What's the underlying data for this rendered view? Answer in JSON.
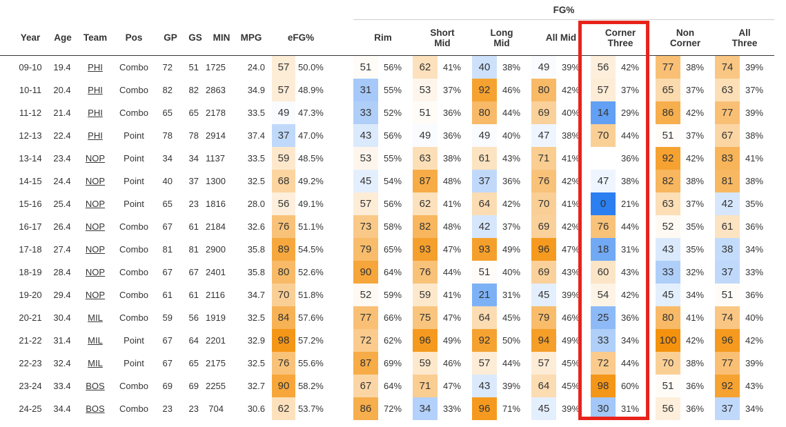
{
  "table": {
    "group_header": "FG%",
    "columns": [
      "Year",
      "Age",
      "Team",
      "Pos",
      "GP",
      "GS",
      "MIN",
      "MPG",
      "eFG%",
      "Rim",
      "Short Mid",
      "Long Mid",
      "All Mid",
      "Corner Three",
      "Non Corner",
      "All Three"
    ],
    "rows": [
      [
        "09-10",
        "19.4",
        "PHI",
        "Combo",
        "72",
        "51",
        "1725",
        "24.0",
        57,
        "50.0%",
        51,
        "56%",
        62,
        "41%",
        40,
        "38%",
        49,
        "39%",
        56,
        "42%",
        77,
        "38%",
        74,
        "39%"
      ],
      [
        "10-11",
        "20.4",
        "PHI",
        "Combo",
        "82",
        "82",
        "2863",
        "34.9",
        57,
        "48.9%",
        31,
        "55%",
        53,
        "37%",
        92,
        "46%",
        80,
        "42%",
        57,
        "37%",
        65,
        "37%",
        63,
        "37%"
      ],
      [
        "11-12",
        "21.4",
        "PHI",
        "Combo",
        "65",
        "65",
        "2178",
        "33.5",
        49,
        "47.3%",
        33,
        "52%",
        51,
        "36%",
        80,
        "44%",
        69,
        "40%",
        14,
        "29%",
        86,
        "42%",
        77,
        "39%"
      ],
      [
        "12-13",
        "22.4",
        "PHI",
        "Point",
        "78",
        "78",
        "2914",
        "37.4",
        37,
        "47.0%",
        43,
        "56%",
        49,
        "36%",
        49,
        "40%",
        47,
        "38%",
        70,
        "44%",
        51,
        "37%",
        67,
        "38%"
      ],
      [
        "13-14",
        "23.4",
        "NOP",
        "Point",
        "34",
        "34",
        "1137",
        "33.5",
        59,
        "48.5%",
        53,
        "55%",
        63,
        "38%",
        61,
        "43%",
        71,
        "41%",
        null,
        "36%",
        92,
        "42%",
        83,
        "41%"
      ],
      [
        "14-15",
        "24.4",
        "NOP",
        "Point",
        "40",
        "37",
        "1300",
        "32.5",
        68,
        "49.2%",
        45,
        "54%",
        87,
        "48%",
        37,
        "36%",
        76,
        "42%",
        47,
        "38%",
        82,
        "38%",
        81,
        "38%"
      ],
      [
        "15-16",
        "25.4",
        "NOP",
        "Point",
        "65",
        "23",
        "1816",
        "28.0",
        56,
        "49.1%",
        57,
        "56%",
        62,
        "41%",
        64,
        "42%",
        70,
        "41%",
        0,
        "21%",
        63,
        "37%",
        42,
        "35%"
      ],
      [
        "16-17",
        "26.4",
        "NOP",
        "Combo",
        "67",
        "61",
        "2184",
        "32.6",
        76,
        "51.1%",
        73,
        "58%",
        82,
        "48%",
        42,
        "37%",
        69,
        "42%",
        76,
        "44%",
        52,
        "35%",
        61,
        "36%"
      ],
      [
        "17-18",
        "27.4",
        "NOP",
        "Combo",
        "81",
        "81",
        "2900",
        "35.8",
        89,
        "54.5%",
        79,
        "65%",
        93,
        "47%",
        93,
        "49%",
        96,
        "47%",
        18,
        "31%",
        43,
        "35%",
        38,
        "34%"
      ],
      [
        "18-19",
        "28.4",
        "NOP",
        "Combo",
        "67",
        "67",
        "2401",
        "35.8",
        80,
        "52.6%",
        90,
        "64%",
        76,
        "44%",
        51,
        "40%",
        69,
        "43%",
        60,
        "43%",
        33,
        "32%",
        37,
        "33%"
      ],
      [
        "19-20",
        "29.4",
        "NOP",
        "Combo",
        "61",
        "61",
        "2116",
        "34.7",
        70,
        "51.8%",
        52,
        "59%",
        59,
        "41%",
        21,
        "31%",
        45,
        "39%",
        54,
        "42%",
        45,
        "34%",
        51,
        "36%"
      ],
      [
        "20-21",
        "30.4",
        "MIL",
        "Combo",
        "59",
        "56",
        "1919",
        "32.5",
        84,
        "57.6%",
        77,
        "66%",
        75,
        "47%",
        64,
        "45%",
        79,
        "46%",
        25,
        "36%",
        80,
        "41%",
        74,
        "40%"
      ],
      [
        "21-22",
        "31.4",
        "MIL",
        "Point",
        "67",
        "64",
        "2201",
        "32.9",
        98,
        "57.2%",
        72,
        "62%",
        96,
        "49%",
        92,
        "50%",
        94,
        "49%",
        33,
        "34%",
        100,
        "42%",
        96,
        "42%"
      ],
      [
        "22-23",
        "32.4",
        "MIL",
        "Point",
        "67",
        "65",
        "2175",
        "32.5",
        76,
        "55.6%",
        87,
        "69%",
        59,
        "46%",
        57,
        "44%",
        57,
        "45%",
        72,
        "44%",
        70,
        "38%",
        77,
        "39%"
      ],
      [
        "23-24",
        "33.4",
        "BOS",
        "Combo",
        "69",
        "69",
        "2255",
        "32.7",
        90,
        "58.2%",
        67,
        "64%",
        71,
        "47%",
        43,
        "39%",
        64,
        "45%",
        98,
        "60%",
        51,
        "36%",
        92,
        "43%"
      ],
      [
        "24-25",
        "34.4",
        "BOS",
        "Combo",
        "23",
        "23",
        "704",
        "30.6",
        62,
        "53.7%",
        86,
        "72%",
        34,
        "33%",
        96,
        "71%",
        45,
        "39%",
        30,
        "31%",
        56,
        "36%",
        37,
        "34%"
      ]
    ]
  }
}
